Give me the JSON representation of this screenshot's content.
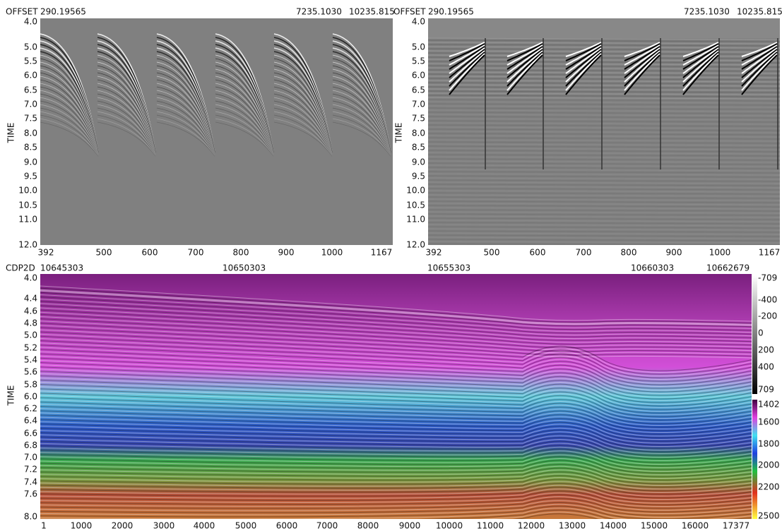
{
  "top_left": {
    "header_label": "OFFSET",
    "header_values": [
      "290.19565",
      "7235.1030",
      "10235.815"
    ],
    "y_label": "TIME",
    "y_ticks": [
      "4.0",
      "5.0",
      "5.5",
      "6.0",
      "6.5",
      "7.0",
      "7.5",
      "8.0",
      "8.5",
      "9.0",
      "9.5",
      "10.0",
      "10.5",
      "11.0",
      "12.0"
    ],
    "x_ticks": [
      "392",
      "500",
      "600",
      "700",
      "800",
      "900",
      "1000",
      "1167"
    ]
  },
  "top_right": {
    "header_label": "OFFSET",
    "header_values": [
      "290.19565",
      "7235.1030",
      "10235.815"
    ],
    "y_label": "TIME",
    "y_ticks": [
      "4.0",
      "5.0",
      "5.5",
      "6.0",
      "6.5",
      "7.0",
      "7.5",
      "8.0",
      "8.5",
      "9.0",
      "9.5",
      "10.0",
      "10.5",
      "11.0",
      "12.0"
    ],
    "x_ticks": [
      "392",
      "500",
      "600",
      "700",
      "800",
      "900",
      "1000",
      "1167"
    ]
  },
  "bottom": {
    "header_label": "CDP2D",
    "header_values": [
      "10645303",
      "10650303",
      "10655303",
      "10660303",
      "10662679"
    ],
    "y_label": "TIME",
    "y_ticks": [
      "4.0",
      "4.4",
      "4.6",
      "4.8",
      "5.0",
      "5.2",
      "5.4",
      "5.6",
      "5.8",
      "6.0",
      "6.2",
      "6.4",
      "6.6",
      "6.8",
      "7.0",
      "7.2",
      "7.4",
      "7.6",
      "8.0"
    ],
    "x_ticks": [
      "1",
      "1000",
      "2000",
      "3000",
      "4000",
      "5000",
      "6000",
      "7000",
      "8000",
      "9000",
      "10000",
      "11000",
      "12000",
      "13000",
      "14000",
      "15000",
      "16000",
      "17377"
    ],
    "amplitude_bar_labels": [
      "-709",
      "-400",
      "-200",
      "0",
      "200",
      "400",
      "709"
    ],
    "velocity_bar_labels": [
      "1402",
      "1600",
      "1800",
      "2000",
      "2200",
      "2500"
    ]
  }
}
